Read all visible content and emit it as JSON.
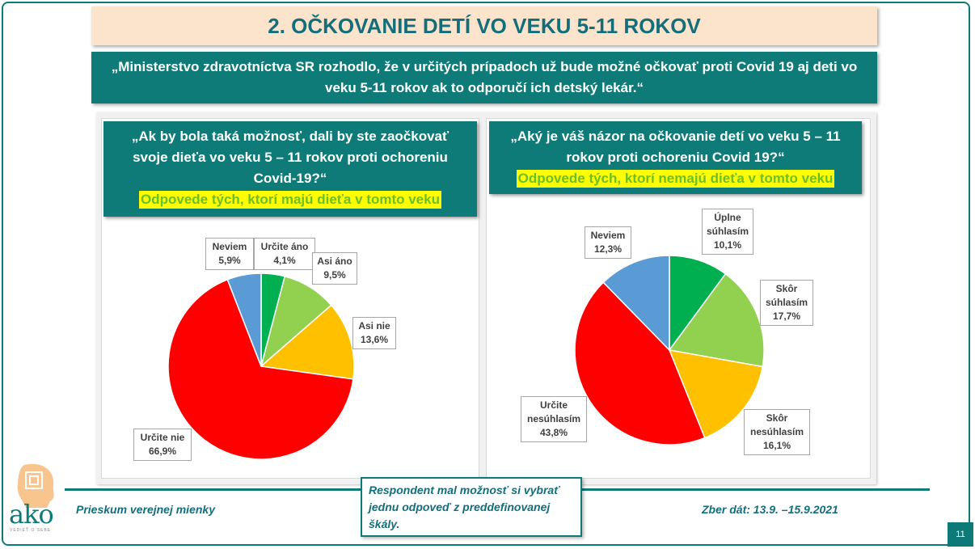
{
  "header": {
    "title": "2. OČKOVANIE DETÍ VO VEKU 5-11 ROKOV",
    "quote": "„Ministerstvo zdravotníctva SR rozhodlo, že v určitých prípadoch už bude možné očkovať proti Covid 19 aj deti vo veku 5-11 rokov ak to odporučí ich detský lekár.“"
  },
  "left_panel": {
    "question_lines": [
      "„Ak by bola taká možnosť, dali by ste zaočkovať",
      "svoje dieťa vo veku 5 – 11 rokov proti ochoreniu",
      "Covid-19?“"
    ],
    "highlight": "Odpovede tých, ktorí majú dieťa v tomto veku"
  },
  "right_panel": {
    "question_lines": [
      "„Aký je váš názor na očkovanie detí vo veku 5 – 11",
      "rokov proti ochoreniu Covid 19?“"
    ],
    "highlight": "Odpovede tých, ktorí nemajú dieťa v tomto veku"
  },
  "chart_data": [
    {
      "type": "pie",
      "title": "",
      "slices": [
        {
          "label_lines": [
            "Určite áno"
          ],
          "value": 4.1,
          "display": "4,1%",
          "color": "#00b050"
        },
        {
          "label_lines": [
            "Asi áno"
          ],
          "value": 9.5,
          "display": "9,5%",
          "color": "#92d050"
        },
        {
          "label_lines": [
            "Asi nie"
          ],
          "value": 13.6,
          "display": "13,6%",
          "color": "#ffc000"
        },
        {
          "label_lines": [
            "Určite nie"
          ],
          "value": 66.9,
          "display": "66,9%",
          "color": "#ff0000"
        },
        {
          "label_lines": [
            "Neviem"
          ],
          "value": 5.9,
          "display": "5,9%",
          "color": "#5b9bd5"
        }
      ]
    },
    {
      "type": "pie",
      "title": "",
      "slices": [
        {
          "label_lines": [
            "Úplne",
            "súhlasím"
          ],
          "value": 10.1,
          "display": "10,1%",
          "color": "#00b050"
        },
        {
          "label_lines": [
            "Skôr",
            "súhlasím"
          ],
          "value": 17.7,
          "display": "17,7%",
          "color": "#92d050"
        },
        {
          "label_lines": [
            "Skôr",
            "nesúhlasím"
          ],
          "value": 16.1,
          "display": "16,1%",
          "color": "#ffc000"
        },
        {
          "label_lines": [
            "Určite",
            "nesúhlasím"
          ],
          "value": 43.8,
          "display": "43,8%",
          "color": "#ff0000"
        },
        {
          "label_lines": [
            "Neviem"
          ],
          "value": 12.3,
          "display": "12,3%",
          "color": "#5b9bd5"
        }
      ]
    }
  ],
  "footer": {
    "left": "Prieskum verejnej mienky",
    "note_lines": [
      "Respondent mal možnosť si vybrať",
      "jednu odpoveď z preddefinovanej",
      "škály."
    ],
    "right": "Zber dát: 13.9. –15.9.2021",
    "page_number": "11",
    "logo_text": "ako",
    "logo_sub": "VEDIEŤ O SEBE"
  }
}
